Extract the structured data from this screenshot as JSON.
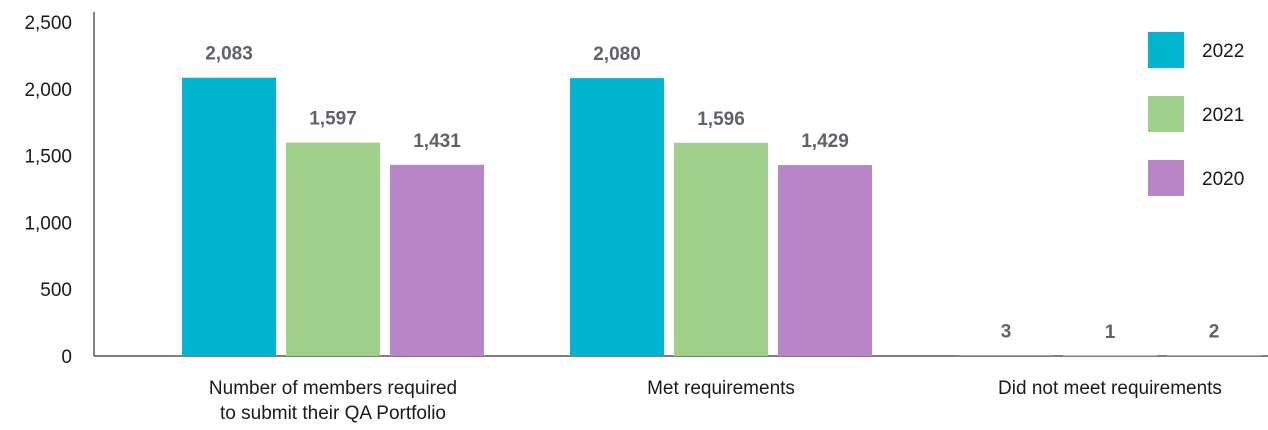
{
  "chart_data": {
    "type": "bar",
    "title": "",
    "xlabel": "",
    "ylabel": "",
    "categories": [
      [
        "Number of members required",
        "to submit their QA Portfolio"
      ],
      [
        "Met requirements"
      ],
      [
        "Did not meet requirements"
      ]
    ],
    "series": [
      {
        "name": "2022",
        "color": "#00b4d0",
        "values": [
          2083,
          2080,
          3
        ],
        "labels": [
          "2,083",
          "2,080",
          "3"
        ]
      },
      {
        "name": "2021",
        "color": "#9ed08a",
        "values": [
          1597,
          1596,
          1
        ],
        "labels": [
          "1,597",
          "1,596",
          "1"
        ]
      },
      {
        "name": "2020",
        "color": "#b885c8",
        "values": [
          1431,
          1429,
          2
        ],
        "labels": [
          "1,431",
          "1,429",
          "2"
        ]
      }
    ],
    "ylim": [
      0,
      2500
    ],
    "yticks": [
      0,
      500,
      1000,
      1500,
      2000,
      2500
    ],
    "ytick_labels": [
      "0",
      "500",
      "1,000",
      "1,500",
      "2,000",
      "2,500"
    ],
    "grid": false,
    "legend_position": "right"
  }
}
